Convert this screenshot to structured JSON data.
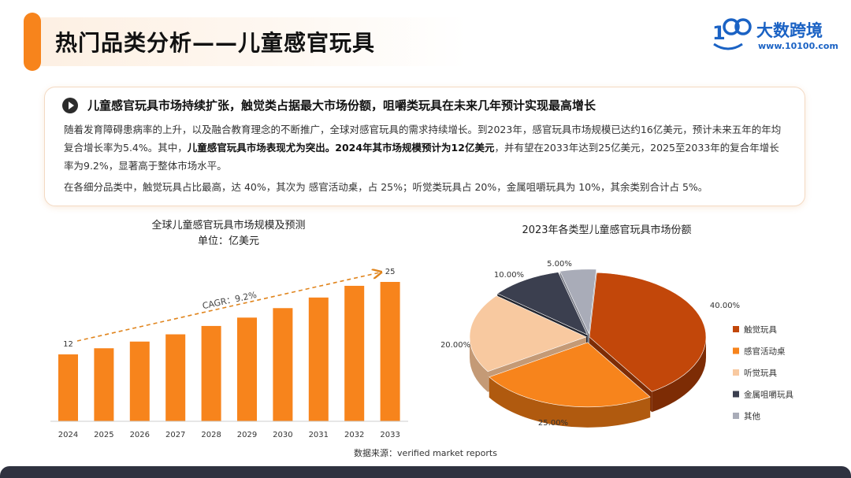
{
  "page": {
    "title": "热门品类分析——儿童感官玩具",
    "source": "数据来源：verified market reports"
  },
  "logo": {
    "mark": "100",
    "mark_prefix": "1",
    "name": "大数跨境",
    "url": "www.10100.com",
    "color": "#1a62c4"
  },
  "summary": {
    "headline": "儿童感官玩具市场持续扩张，触觉类占据最大市场份额，咀嚼类玩具在未来几年预计实现最高增长",
    "p1_a": "随着发育障碍患病率的上升，以及融合教育理念的不断推广，全球对感官玩具的需求持续增长。到2023年，感官玩具市场规模已达约16亿美元，预计未来五年的年均复合增长率为5.4%。其中，",
    "p1_b": "儿童感官玩具市场表现尤为突出。2024年其市场规模预计为12亿美元",
    "p1_c": "，并有望在2033年达到25亿美元，2025至2033年的复合年增长率为9.2%，显著高于整体市场水平。",
    "p2": "在各细分品类中，触觉玩具占比最高，达 40%，其次为 感官活动桌，占 25%；听觉类玩具占 20%，金属咀嚼玩具为 10%，其余类别合计占 5%。"
  },
  "chart_data": [
    {
      "type": "bar",
      "title": "全球儿童感官玩具市场规模及预测",
      "subtitle": "单位：亿美元",
      "categories": [
        "2024",
        "2025",
        "2026",
        "2027",
        "2028",
        "2029",
        "2030",
        "2031",
        "2032",
        "2033"
      ],
      "values": [
        12,
        13.1,
        14.3,
        15.6,
        17.1,
        18.6,
        20.3,
        22.2,
        24.3,
        25
      ],
      "data_labels": {
        "first": "12",
        "last": "25"
      },
      "annotation": "CAGR：9.2%",
      "ylim": [
        0,
        25
      ],
      "grid": false,
      "color": "#f7841c"
    },
    {
      "type": "pie",
      "title": "2023年各类型儿童感官玩具市场份额",
      "labels": [
        "触觉玩具",
        "感官活动桌",
        "听觉玩具",
        "金属咀嚼玩具",
        "其他"
      ],
      "values": [
        40,
        25,
        20,
        10,
        5
      ],
      "value_labels": [
        "40.00%",
        "25.00%",
        "20.00%",
        "10.00%",
        "5.00%"
      ],
      "colors": [
        "#c2470a",
        "#f7841c",
        "#f8c9a0",
        "#3b3f4f",
        "#a9acb8"
      ],
      "side_colors": [
        "#7d2c05",
        "#b05a0f",
        "#c49a76",
        "#24262f",
        "#7c7f8a"
      ],
      "legend_position": "right"
    }
  ]
}
